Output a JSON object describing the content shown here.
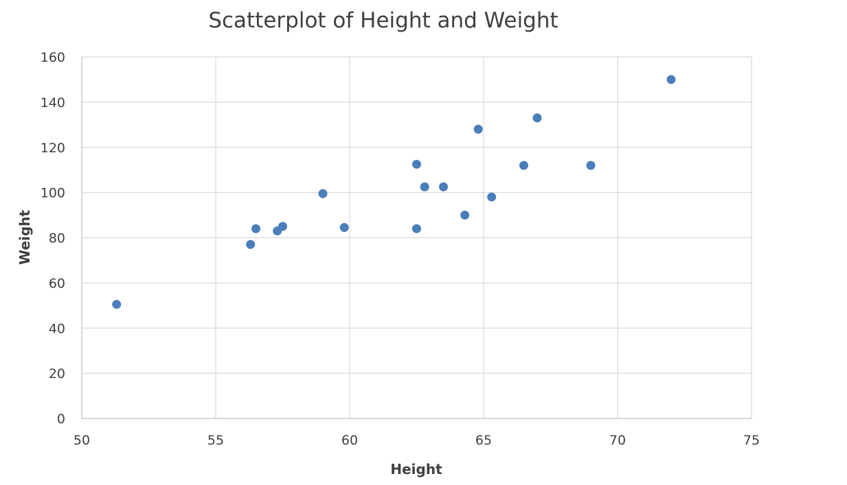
{
  "chart_data": {
    "type": "scatter",
    "title": "Scatterplot of Height and Weight",
    "xlabel": "Height",
    "ylabel": "Weight",
    "xlim": [
      50,
      75
    ],
    "ylim": [
      0,
      160
    ],
    "x_ticks": [
      "50",
      "55",
      "60",
      "65",
      "70",
      "75"
    ],
    "y_ticks": [
      "0",
      "20",
      "40",
      "60",
      "80",
      "100",
      "120",
      "140",
      "160"
    ],
    "grid": true,
    "legend": "none",
    "marker_color": "#4a7ebb",
    "points": [
      {
        "x": 51.3,
        "y": 50.5
      },
      {
        "x": 56.3,
        "y": 77.0
      },
      {
        "x": 56.5,
        "y": 84.0
      },
      {
        "x": 57.3,
        "y": 83.0
      },
      {
        "x": 57.5,
        "y": 85.0
      },
      {
        "x": 59.0,
        "y": 99.5
      },
      {
        "x": 59.8,
        "y": 84.5
      },
      {
        "x": 62.5,
        "y": 84.0
      },
      {
        "x": 62.5,
        "y": 112.5
      },
      {
        "x": 62.8,
        "y": 102.5
      },
      {
        "x": 63.5,
        "y": 102.5
      },
      {
        "x": 64.3,
        "y": 90.0
      },
      {
        "x": 64.8,
        "y": 128.0
      },
      {
        "x": 65.3,
        "y": 98.0
      },
      {
        "x": 66.5,
        "y": 112.0
      },
      {
        "x": 67.0,
        "y": 133.0
      },
      {
        "x": 69.0,
        "y": 112.0
      },
      {
        "x": 72.0,
        "y": 150.0
      }
    ]
  }
}
